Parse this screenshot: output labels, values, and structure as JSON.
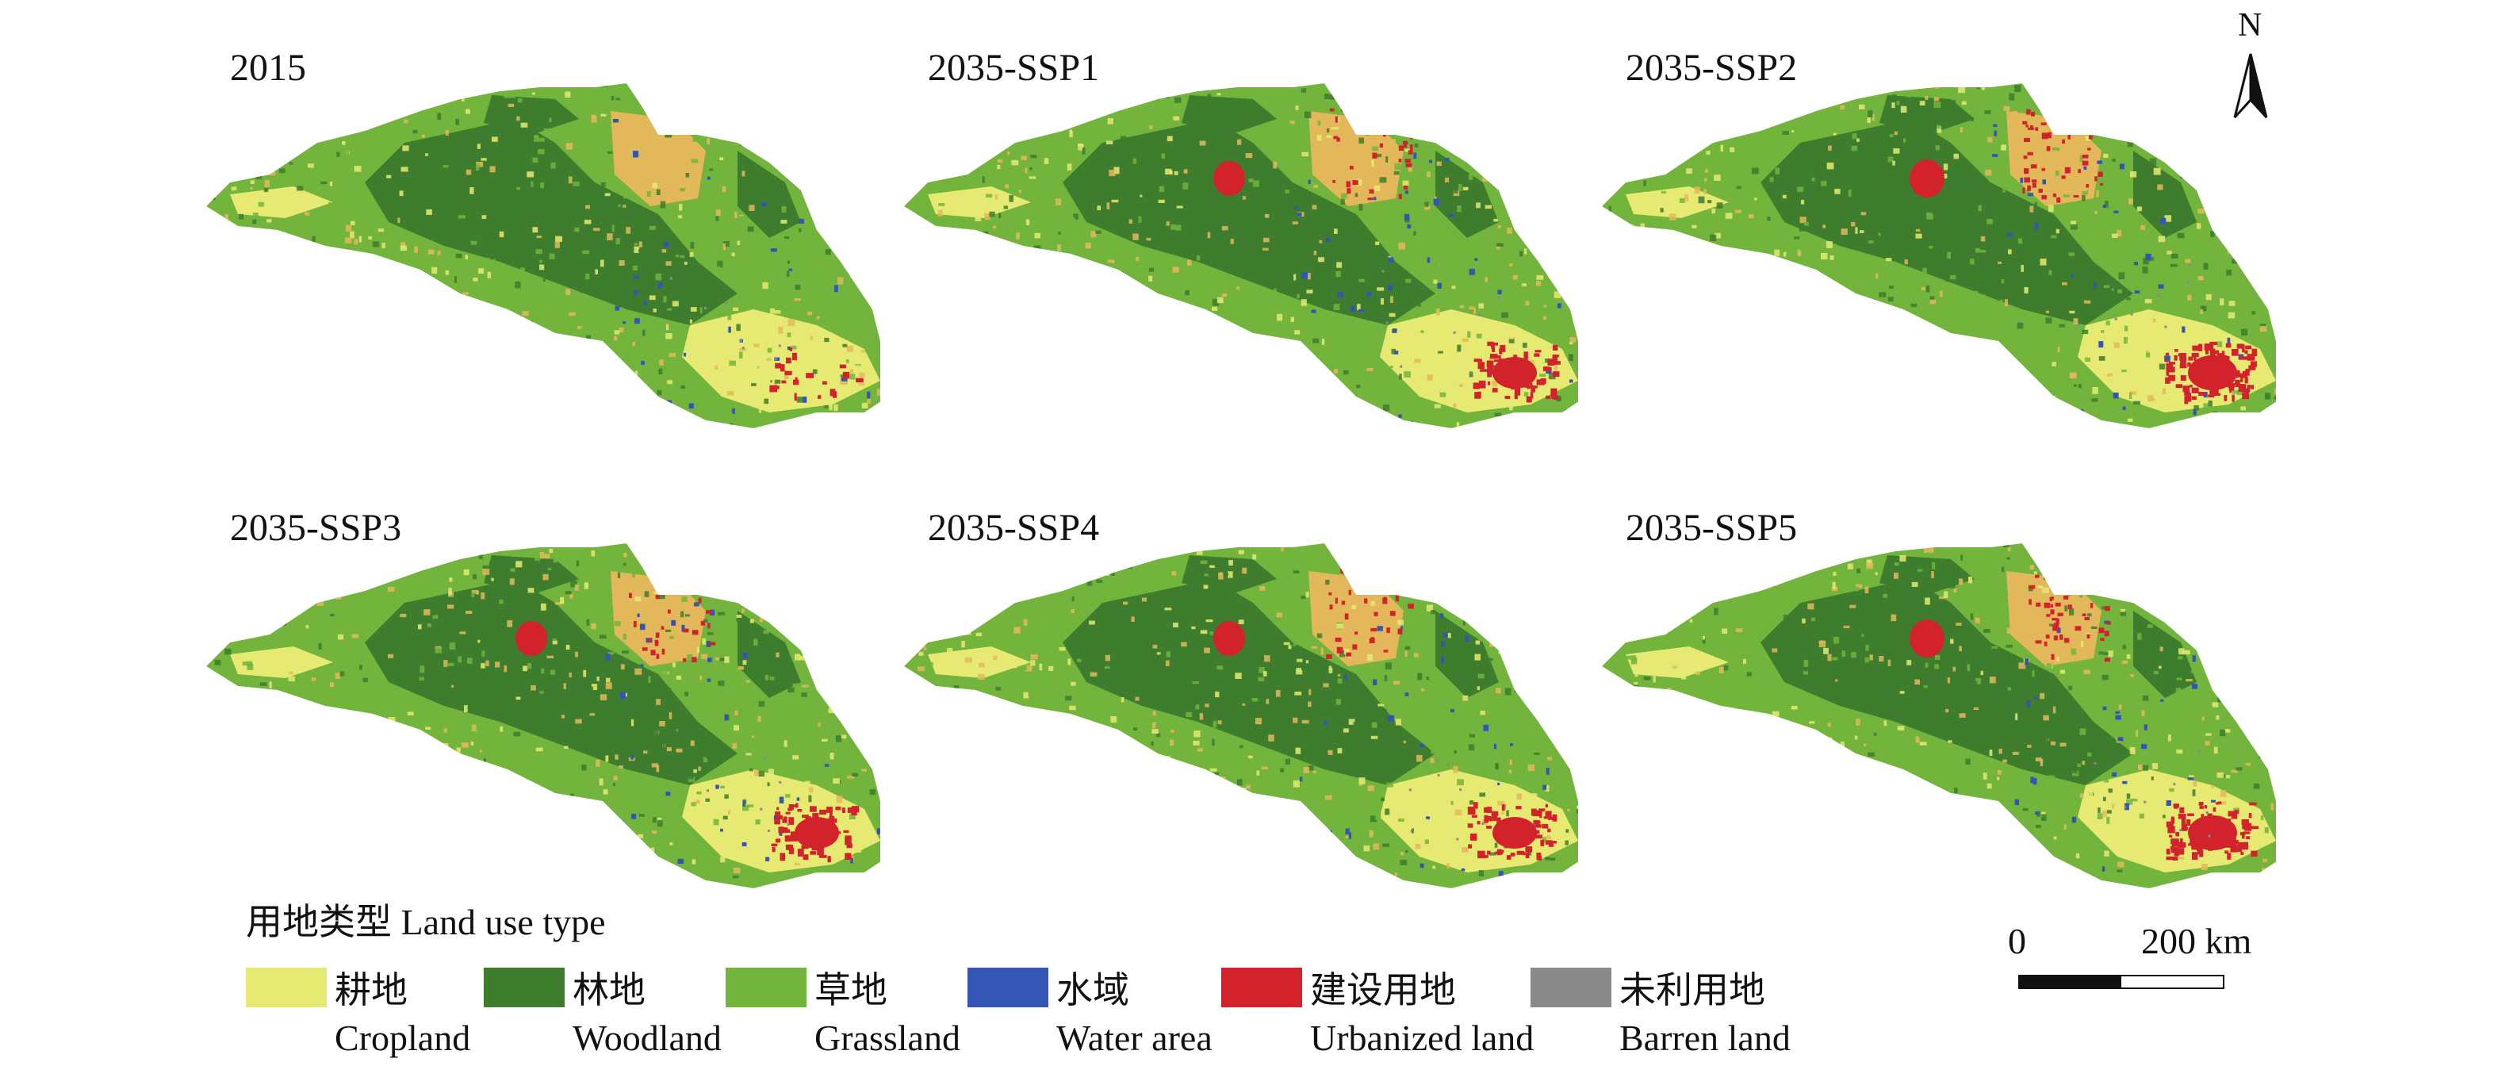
{
  "colors": {
    "cropland": "#e6ea72",
    "woodland": "#3e7d2e",
    "grassland": "#72b43c",
    "water": "#3455b4",
    "urban": "#d2232d",
    "barren": "#8a8a8a",
    "cropland_dense": "#e3b85a"
  },
  "panels": [
    {
      "title": "2015",
      "urban_level": 0
    },
    {
      "title": "2035-SSP1",
      "urban_level": 2
    },
    {
      "title": "2035-SSP2",
      "urban_level": 3
    },
    {
      "title": "2035-SSP3",
      "urban_level": 2
    },
    {
      "title": "2035-SSP4",
      "urban_level": 2
    },
    {
      "title": "2035-SSP5",
      "urban_level": 3
    }
  ],
  "legend": {
    "title": "用地类型 Land use type",
    "items": [
      {
        "zh": "耕地",
        "en": "Cropland",
        "color_key": "cropland"
      },
      {
        "zh": "林地",
        "en": "Woodland",
        "color_key": "woodland"
      },
      {
        "zh": "草地",
        "en": "Grassland",
        "color_key": "grassland"
      },
      {
        "zh": "水域",
        "en": "Water area",
        "color_key": "water"
      },
      {
        "zh": "建设用地",
        "en": "Urbanized land",
        "color_key": "urban"
      },
      {
        "zh": "未利用地",
        "en": "Barren land",
        "color_key": "barren"
      }
    ]
  },
  "scalebar": {
    "start": "0",
    "end": "200 km"
  },
  "north": {
    "label": "N"
  }
}
